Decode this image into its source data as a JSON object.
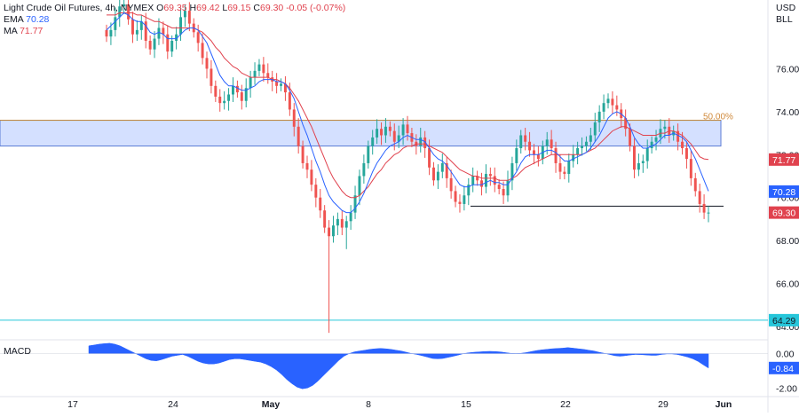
{
  "chart_data": {
    "type": "candlestick",
    "symbol_line": {
      "name": "Light Crude Oil Futures, 4h, NYMEX",
      "o_label": "O",
      "o": "69.35",
      "h_label": "H",
      "h": "69.42",
      "l_label": "L",
      "l": "69.15",
      "c_label": "C",
      "c": "69.30",
      "change": "-0.05 (-0.07%)"
    },
    "indicators": [
      {
        "name": "EMA",
        "value": "70.28",
        "color": "#2962ff"
      },
      {
        "name": "MA",
        "value": "71.77",
        "color": "#e0424e"
      }
    ],
    "currency": "USD",
    "unit": "BLL",
    "y_ticks": [
      "76.00",
      "74.00",
      "72.00",
      "70.00",
      "68.00",
      "66.00",
      "64.00"
    ],
    "ylim": [
      63.5,
      79.2
    ],
    "x_ticks": [
      "17",
      "24",
      "May",
      "8",
      "15",
      "22",
      "29",
      "Jun"
    ],
    "price_badges": [
      {
        "value": "71.77",
        "price": 71.77,
        "color": "#e0424e"
      },
      {
        "value": "70.28",
        "price": 70.28,
        "color": "#2962ff"
      },
      {
        "value": "69.30",
        "price": 69.3,
        "color": "#e0424e"
      },
      {
        "value": "64.29",
        "price": 64.29,
        "color": "#26c6da"
      }
    ],
    "zone": {
      "from": 72.4,
      "to": 73.6,
      "label": "50.00%"
    },
    "support_line": {
      "price": 69.6
    },
    "horizontal_level": {
      "price": 64.29
    },
    "close_path": [
      77.5,
      77.8,
      78.4,
      78.9,
      79.0,
      78.3,
      77.6,
      77.8,
      78.2,
      77.3,
      76.9,
      77.4,
      77.9,
      77.6,
      76.8,
      77.3,
      77.6,
      78.4,
      78.7,
      78.1,
      77.7,
      77.2,
      76.5,
      76.0,
      75.2,
      74.7,
      74.4,
      74.5,
      74.8,
      75.2,
      74.9,
      74.5,
      75.1,
      75.6,
      75.9,
      76.2,
      75.8,
      75.6,
      75.4,
      75.2,
      75.3,
      74.9,
      74.1,
      73.3,
      72.4,
      71.6,
      71.3,
      70.6,
      70.0,
      69.4,
      68.6,
      68.2,
      68.7,
      69.0,
      68.6,
      68.9,
      69.3,
      70.1,
      71.0,
      71.6,
      72.4,
      72.8,
      73.2,
      72.9,
      73.3,
      73.1,
      72.6,
      72.9,
      73.4,
      73.0,
      72.6,
      72.4,
      72.8,
      72.3,
      71.4,
      70.8,
      71.2,
      71.6,
      70.9,
      70.3,
      69.8,
      69.7,
      70.1,
      70.6,
      71.0,
      70.8,
      70.5,
      71.1,
      71.0,
      70.6,
      70.4,
      70.1,
      70.8,
      71.6,
      72.3,
      72.9,
      72.6,
      72.2,
      72.0,
      71.8,
      72.4,
      72.7,
      72.3,
      71.6,
      71.2,
      71.1,
      71.7,
      72.0,
      72.3,
      72.4,
      72.6,
      72.9,
      73.5,
      74.0,
      74.4,
      74.6,
      74.3,
      74.1,
      73.7,
      73.2,
      72.4,
      71.3,
      71.6,
      71.7,
      72.3,
      72.6,
      72.8,
      73.2,
      73.3,
      72.9,
      73.1,
      72.6,
      72.3,
      71.8,
      70.9,
      70.3,
      69.7,
      69.3,
      69.3
    ],
    "ema_path": [
      77.8,
      78.0,
      78.2,
      78.4,
      78.6,
      78.5,
      78.3,
      78.2,
      78.2,
      78.0,
      77.7,
      77.6,
      77.7,
      77.6,
      77.4,
      77.4,
      77.4,
      77.6,
      77.8,
      77.9,
      77.9,
      77.8,
      77.5,
      77.2,
      76.7,
      76.2,
      75.7,
      75.4,
      75.2,
      75.2,
      75.1,
      75.0,
      75.0,
      75.1,
      75.2,
      75.4,
      75.5,
      75.5,
      75.5,
      75.4,
      75.4,
      75.3,
      75.0,
      74.6,
      74.0,
      73.4,
      72.9,
      72.3,
      71.7,
      71.2,
      70.6,
      70.1,
      69.8,
      69.6,
      69.4,
      69.3,
      69.3,
      69.5,
      69.8,
      70.2,
      70.7,
      71.2,
      71.6,
      71.9,
      72.2,
      72.4,
      72.5,
      72.6,
      72.8,
      72.9,
      72.8,
      72.7,
      72.7,
      72.6,
      72.3,
      72.0,
      71.8,
      71.7,
      71.5,
      71.2,
      70.9,
      70.6,
      70.5,
      70.5,
      70.6,
      70.6,
      70.6,
      70.7,
      70.8,
      70.7,
      70.7,
      70.6,
      70.6,
      70.9,
      71.2,
      71.6,
      71.9,
      72.0,
      72.0,
      72.0,
      72.1,
      72.2,
      72.2,
      72.1,
      71.9,
      71.7,
      71.7,
      71.8,
      71.9,
      72.0,
      72.1,
      72.3,
      72.6,
      72.9,
      73.3,
      73.7,
      73.9,
      74.0,
      73.9,
      73.7,
      73.3,
      72.8,
      72.5,
      72.3,
      72.3,
      72.4,
      72.5,
      72.7,
      72.9,
      72.9,
      73.0,
      72.9,
      72.8,
      72.6,
      72.2,
      71.8,
      71.3,
      70.8,
      70.3
    ],
    "ma_path": [
      78.5,
      78.5,
      78.5,
      78.6,
      78.6,
      78.6,
      78.6,
      78.5,
      78.5,
      78.4,
      78.3,
      78.2,
      78.2,
      78.1,
      78.0,
      77.9,
      77.9,
      77.9,
      77.9,
      77.9,
      77.9,
      77.8,
      77.7,
      77.5,
      77.3,
      77.0,
      76.8,
      76.5,
      76.3,
      76.1,
      76.0,
      75.8,
      75.7,
      75.6,
      75.6,
      75.6,
      75.6,
      75.6,
      75.5,
      75.5,
      75.4,
      75.3,
      75.1,
      74.8,
      74.5,
      74.1,
      73.7,
      73.3,
      72.8,
      72.3,
      71.8,
      71.3,
      70.9,
      70.6,
      70.3,
      70.1,
      70.0,
      70.0,
      70.1,
      70.3,
      70.5,
      70.8,
      71.1,
      71.3,
      71.6,
      71.8,
      72.0,
      72.1,
      72.3,
      72.4,
      72.4,
      72.5,
      72.5,
      72.5,
      72.4,
      72.3,
      72.2,
      72.1,
      71.9,
      71.7,
      71.5,
      71.3,
      71.2,
      71.1,
      71.0,
      71.0,
      70.9,
      70.9,
      70.9,
      70.9,
      70.8,
      70.8,
      70.8,
      70.9,
      71.0,
      71.2,
      71.4,
      71.5,
      71.6,
      71.7,
      71.8,
      71.9,
      72.0,
      72.0,
      72.0,
      72.0,
      72.0,
      72.0,
      72.0,
      72.0,
      72.1,
      72.2,
      72.3,
      72.5,
      72.7,
      72.9,
      73.1,
      73.2,
      73.3,
      73.3,
      73.2,
      73.1,
      73.0,
      72.9,
      72.9,
      72.9,
      72.9,
      73.0,
      73.0,
      73.1,
      73.1,
      73.0,
      72.9,
      72.7,
      72.5,
      72.2,
      71.9,
      71.8,
      71.77
    ],
    "macd": {
      "label": "MACD",
      "ticks": [
        "0.00",
        "-0.84",
        "-2.00"
      ],
      "badge": "-0.84",
      "ylim": [
        -2.4,
        0.7
      ],
      "values": [
        0.45,
        0.5,
        0.55,
        0.58,
        0.6,
        0.55,
        0.45,
        0.3,
        0.15,
        0.0,
        -0.15,
        -0.3,
        -0.4,
        -0.42,
        -0.35,
        -0.25,
        -0.15,
        -0.1,
        -0.05,
        -0.15,
        -0.3,
        -0.45,
        -0.55,
        -0.6,
        -0.6,
        -0.55,
        -0.45,
        -0.35,
        -0.3,
        -0.3,
        -0.35,
        -0.4,
        -0.45,
        -0.5,
        -0.6,
        -0.75,
        -0.95,
        -1.2,
        -1.5,
        -1.75,
        -1.95,
        -2.05,
        -2.0,
        -1.85,
        -1.6,
        -1.3,
        -1.0,
        -0.7,
        -0.4,
        -0.15,
        0.0,
        0.1,
        0.15,
        0.2,
        0.25,
        0.28,
        0.3,
        0.28,
        0.25,
        0.2,
        0.15,
        0.08,
        0.0,
        -0.05,
        -0.12,
        -0.2,
        -0.28,
        -0.3,
        -0.28,
        -0.22,
        -0.15,
        -0.08,
        0.0,
        0.05,
        0.08,
        0.1,
        0.12,
        0.13,
        0.12,
        0.1,
        0.06,
        0.02,
        0.0,
        0.02,
        0.06,
        0.12,
        0.18,
        0.22,
        0.25,
        0.28,
        0.3,
        0.32,
        0.35,
        0.32,
        0.28,
        0.25,
        0.2,
        0.15,
        0.08,
        0.02,
        -0.05,
        -0.12,
        -0.15,
        -0.12,
        -0.08,
        -0.05,
        -0.06,
        -0.08,
        -0.1,
        -0.1,
        -0.05,
        -0.02,
        -0.02,
        -0.05,
        -0.12,
        -0.2,
        -0.3,
        -0.45,
        -0.65,
        -0.84
      ]
    }
  }
}
